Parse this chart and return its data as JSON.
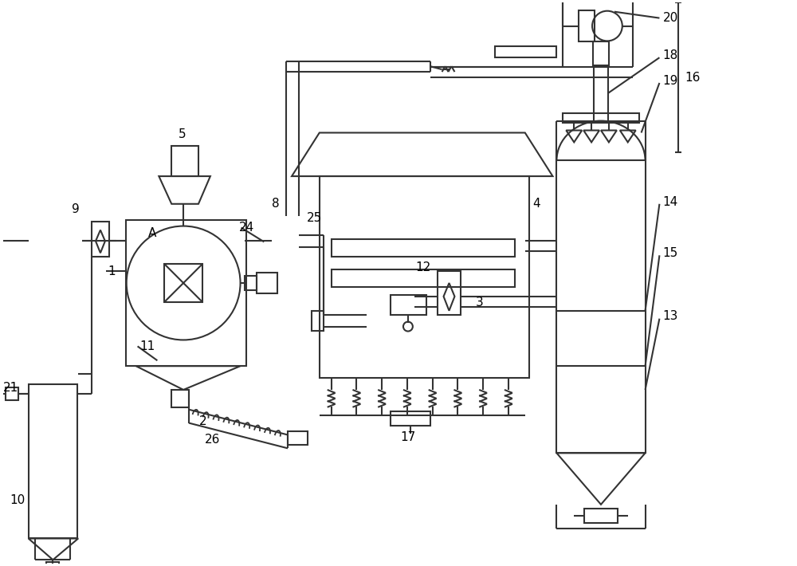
{
  "bg_color": "#ffffff",
  "lc": "#333333",
  "lw": 1.5,
  "figsize": [
    10.0,
    7.1
  ],
  "dpi": 100
}
